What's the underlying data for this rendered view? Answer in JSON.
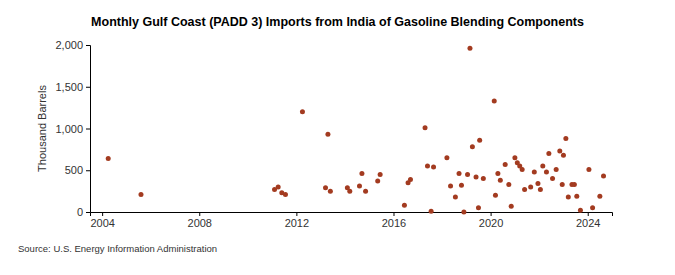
{
  "chart_data": {
    "type": "scatter",
    "title": "Monthly Gulf Coast (PADD 3) Imports from India of Gasoline Blending Components",
    "y_label": "Thousand Barrels",
    "source": "Source: U.S. Energy Information Administration",
    "x": [
      2004.25,
      2005.6,
      2011.1,
      2011.25,
      2011.4,
      2011.55,
      2012.25,
      2013.2,
      2013.3,
      2013.4,
      2014.1,
      2014.2,
      2014.6,
      2014.7,
      2014.85,
      2015.35,
      2015.45,
      2016.45,
      2016.6,
      2016.7,
      2017.3,
      2017.4,
      2017.55,
      2017.65,
      2018.2,
      2018.35,
      2018.55,
      2018.7,
      2018.8,
      2018.9,
      2019.05,
      2019.15,
      2019.25,
      2019.4,
      2019.5,
      2019.55,
      2019.7,
      2020.15,
      2020.2,
      2020.3,
      2020.4,
      2020.6,
      2020.75,
      2020.85,
      2021.0,
      2021.1,
      2021.2,
      2021.3,
      2021.4,
      2021.65,
      2021.8,
      2021.95,
      2022.05,
      2022.15,
      2022.3,
      2022.4,
      2022.55,
      2022.7,
      2022.85,
      2022.95,
      2023.0,
      2023.1,
      2023.2,
      2023.35,
      2023.45,
      2023.55,
      2023.7,
      2024.05,
      2024.2,
      2024.5,
      2024.65
    ],
    "series": [
      {
        "name": "Imports",
        "color": "#a33b20",
        "marker": "circle",
        "values": [
          640,
          210,
          270,
          300,
          230,
          210,
          1200,
          290,
          930,
          250,
          290,
          250,
          310,
          460,
          250,
          370,
          450,
          80,
          350,
          390,
          1010,
          550,
          10,
          540,
          650,
          310,
          180,
          460,
          320,
          0,
          450,
          1960,
          780,
          420,
          50,
          860,
          400,
          1330,
          200,
          460,
          380,
          570,
          330,
          70,
          650,
          590,
          550,
          510,
          270,
          300,
          480,
          340,
          270,
          550,
          480,
          700,
          400,
          510,
          730,
          330,
          680,
          880,
          180,
          330,
          330,
          190,
          20,
          510,
          50,
          190,
          430
        ]
      }
    ],
    "xlim": [
      2003.5,
      2025.0
    ],
    "xticks": [
      2004,
      2008,
      2012,
      2016,
      2020,
      2024
    ],
    "ylim": [
      0,
      2000
    ],
    "yticks": [
      0,
      500,
      {
        "value": 1000,
        "label": "1,000"
      },
      {
        "value": 1500,
        "label": "1,500"
      },
      {
        "value": 2000,
        "label": "2,000"
      }
    ],
    "grid": false
  }
}
